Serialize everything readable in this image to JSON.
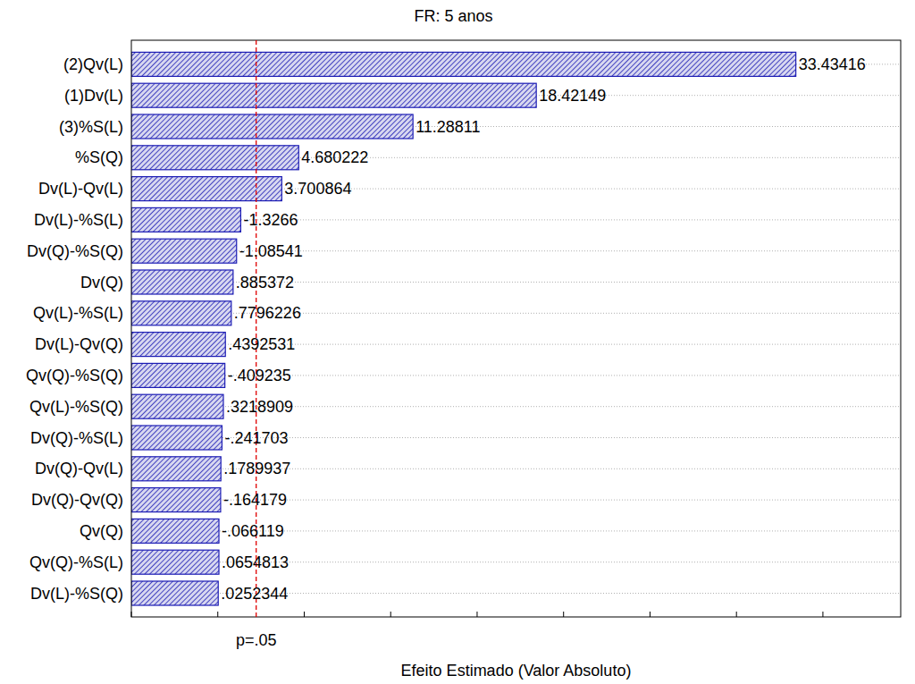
{
  "chart_data": {
    "type": "pareto",
    "title": "FR: 5 anos",
    "x_label": "Efeito Estimado (Valor Absoluto)",
    "orientation": "horizontal",
    "categories": [
      "(2)Qv(L)",
      "(1)Dv(L)",
      "(3)%S(L)",
      "%S(Q)",
      "Dv(L)-Qv(L)",
      "Dv(L)-%S(L)",
      "Dv(Q)-%S(Q)",
      "Dv(Q)",
      "Qv(L)-%S(L)",
      "Dv(L)-Qv(Q)",
      "Qv(Q)-%S(Q)",
      "Qv(L)-%S(Q)",
      "Dv(Q)-%S(L)",
      "Dv(Q)-Qv(L)",
      "Dv(Q)-Qv(Q)",
      "Qv(Q)",
      "Qv(Q)-%S(L)",
      "Dv(L)-%S(Q)"
    ],
    "values": [
      33.43416,
      18.42149,
      11.28811,
      4.680222,
      3.700864,
      -1.3266,
      -1.08541,
      0.885372,
      0.7796226,
      0.4392531,
      -0.409235,
      0.3218909,
      -0.241703,
      0.1789937,
      -0.164179,
      -0.066119,
      0.0654813,
      0.0252344
    ],
    "value_labels": [
      "33.43416",
      "18.42149",
      "11.28811",
      "4.680222",
      "3.700864",
      "-1.3266",
      "-1.08541",
      ".885372",
      ".7796226",
      ".4392531",
      "-.409235",
      ".3218909",
      "-.241703",
      ".1789937",
      "-.164179",
      "-.066119",
      ".0654813",
      ".0252344"
    ],
    "data_labels": true,
    "color": "#1c1cb4",
    "xlim": [
      -5,
      39.5
    ],
    "xticks": [
      -5,
      0,
      5,
      10,
      15,
      20,
      25,
      30,
      35
    ],
    "tick_labels": false,
    "grid": true,
    "reference_line": {
      "value": 2.22,
      "label": "p=.05",
      "color": "#e00000"
    }
  }
}
